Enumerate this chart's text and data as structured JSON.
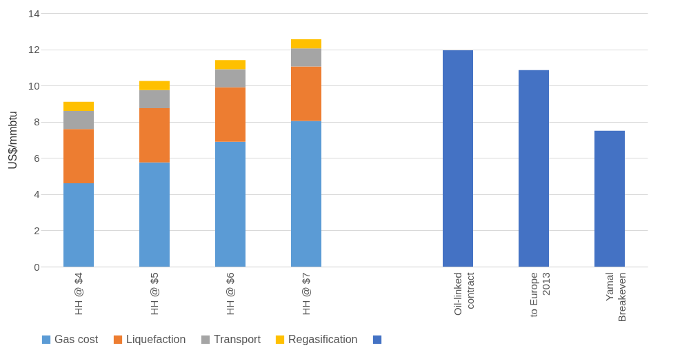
{
  "chart_data": {
    "type": "bar",
    "stacked": true,
    "ylabel": "US$/mmbtu",
    "categories": [
      "HH @ $4",
      "HH @ $5",
      "HH @ $6",
      "HH @ $7",
      null,
      "Oil-linked contract",
      "to Europe 2013",
      "Yamal Breakeven"
    ],
    "series": [
      {
        "name": "Gas cost",
        "color": "#5b9bd5",
        "values": [
          4.6,
          5.75,
          6.9,
          8.05,
          null,
          null,
          null,
          null
        ]
      },
      {
        "name": "Liquefaction",
        "color": "#ed7d31",
        "values": [
          3.0,
          3.0,
          3.0,
          3.0,
          null,
          null,
          null,
          null
        ]
      },
      {
        "name": "Transport",
        "color": "#a5a5a5",
        "values": [
          1.0,
          1.0,
          1.0,
          1.0,
          null,
          null,
          null,
          null
        ]
      },
      {
        "name": "Regasification",
        "color": "#ffc000",
        "values": [
          0.5,
          0.5,
          0.5,
          0.5,
          null,
          null,
          null,
          null
        ]
      },
      {
        "color": "#4472c4",
        "values": [
          null,
          null,
          null,
          null,
          null,
          11.95,
          10.85,
          7.5
        ]
      }
    ],
    "ylim": [
      0,
      14
    ],
    "yticks": [
      0,
      2,
      4,
      6,
      8,
      10,
      12,
      14
    ],
    "grid": "y",
    "legend": "bottom"
  }
}
